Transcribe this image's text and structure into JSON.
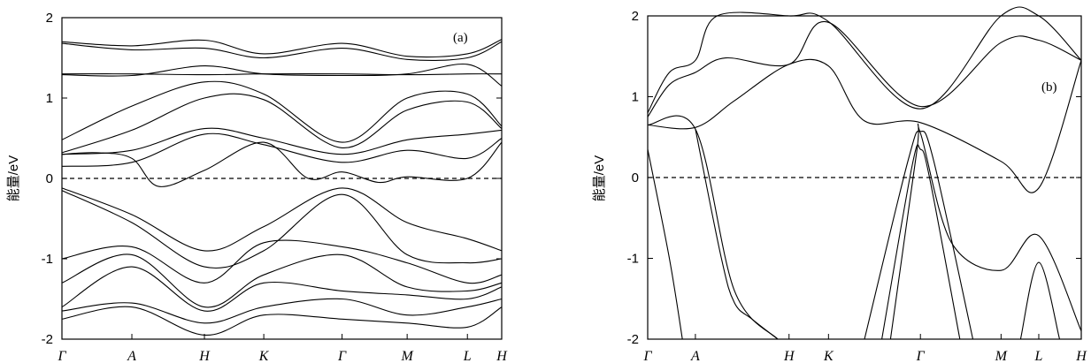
{
  "chart_data": [
    {
      "panel_label": "(a)",
      "type": "line",
      "ylabel": "能量/eV",
      "ylim": [
        -2,
        2
      ],
      "yticks": [
        "2",
        "1",
        "0",
        "-1",
        "-2"
      ],
      "kpath": [
        "Γ",
        "A",
        "H",
        "K",
        "Γ",
        "M",
        "L",
        "H"
      ],
      "kpath_x": [
        0,
        0.159,
        0.324,
        0.459,
        0.637,
        0.785,
        0.922,
        1.0
      ],
      "fermi_level": 0,
      "bands": [
        {
          "x": [
            0,
            0.159,
            0.324,
            0.459,
            0.637,
            0.785,
            0.922,
            1.0
          ],
          "y": [
            1.7,
            1.65,
            1.72,
            1.55,
            1.68,
            1.52,
            1.55,
            1.73
          ]
        },
        {
          "x": [
            0,
            0.159,
            0.324,
            0.459,
            0.637,
            0.785,
            0.922,
            1.0
          ],
          "y": [
            1.68,
            1.6,
            1.62,
            1.5,
            1.62,
            1.48,
            1.5,
            1.7
          ]
        },
        {
          "x": [
            0,
            0.159,
            0.324,
            0.459,
            0.637,
            0.785,
            0.922,
            1.0
          ],
          "y": [
            1.3,
            1.3,
            1.29,
            1.3,
            1.3,
            1.29,
            1.3,
            1.3
          ]
        },
        {
          "x": [
            0,
            0.159,
            0.324,
            0.459,
            0.637,
            0.785,
            0.922,
            1.0
          ],
          "y": [
            1.29,
            1.28,
            1.4,
            1.3,
            1.28,
            1.3,
            1.42,
            1.15
          ]
        },
        {
          "x": [
            0,
            0.159,
            0.324,
            0.459,
            0.637,
            0.785,
            0.922,
            1.0
          ],
          "y": [
            0.48,
            0.9,
            1.2,
            1.05,
            0.45,
            1.0,
            1.05,
            0.65
          ]
        },
        {
          "x": [
            0,
            0.159,
            0.324,
            0.459,
            0.637,
            0.785,
            0.922,
            1.0
          ],
          "y": [
            0.32,
            0.6,
            1.0,
            0.98,
            0.38,
            0.85,
            0.95,
            0.62
          ]
        },
        {
          "x": [
            0,
            0.159,
            0.324,
            0.459,
            0.637,
            0.785,
            0.922,
            1.0
          ],
          "y": [
            0.3,
            0.35,
            0.62,
            0.5,
            0.3,
            0.48,
            0.55,
            0.6
          ]
        },
        {
          "x": [
            0,
            0.159,
            0.324,
            0.459,
            0.637,
            0.785,
            0.922,
            1.0
          ],
          "y": [
            0.15,
            0.2,
            0.55,
            0.42,
            0.2,
            0.35,
            0.25,
            0.5
          ]
        },
        {
          "x": [
            0,
            0.08,
            0.159,
            0.22,
            0.324,
            0.459,
            0.56,
            0.637,
            0.72,
            0.785,
            0.922,
            1.0
          ],
          "y": [
            0.3,
            0.32,
            0.25,
            -0.1,
            0.1,
            0.45,
            0.0,
            0.08,
            -0.05,
            0.02,
            0.0,
            0.45
          ]
        },
        {
          "x": [
            0,
            0.159,
            0.324,
            0.459,
            0.637,
            0.785,
            0.922,
            1.0
          ],
          "y": [
            -0.12,
            -0.45,
            -0.9,
            -0.6,
            -0.12,
            -0.55,
            -0.75,
            -0.9
          ]
        },
        {
          "x": [
            0,
            0.159,
            0.324,
            0.459,
            0.637,
            0.785,
            0.922,
            1.0
          ],
          "y": [
            -0.15,
            -0.55,
            -1.1,
            -0.9,
            -0.2,
            -0.95,
            -1.05,
            -1.0
          ]
        },
        {
          "x": [
            0,
            0.159,
            0.324,
            0.459,
            0.637,
            0.785,
            0.922,
            1.0
          ],
          "y": [
            -1.0,
            -0.85,
            -1.3,
            -0.8,
            -0.85,
            -1.05,
            -1.3,
            -1.2
          ]
        },
        {
          "x": [
            0,
            0.159,
            0.324,
            0.459,
            0.637,
            0.785,
            0.922,
            1.0
          ],
          "y": [
            -1.3,
            -0.95,
            -1.6,
            -1.2,
            -0.95,
            -1.35,
            -1.4,
            -1.3
          ]
        },
        {
          "x": [
            0,
            0.159,
            0.324,
            0.459,
            0.637,
            0.785,
            0.922,
            1.0
          ],
          "y": [
            -1.6,
            -1.1,
            -1.65,
            -1.3,
            -1.4,
            -1.45,
            -1.5,
            -1.35
          ]
        },
        {
          "x": [
            0,
            0.159,
            0.324,
            0.459,
            0.637,
            0.785,
            0.922,
            1.0
          ],
          "y": [
            -1.65,
            -1.55,
            -1.8,
            -1.6,
            -1.5,
            -1.7,
            -1.6,
            -1.5
          ]
        },
        {
          "x": [
            0,
            0.159,
            0.324,
            0.459,
            0.637,
            0.785,
            0.922,
            1.0
          ],
          "y": [
            -1.75,
            -1.6,
            -1.95,
            -1.7,
            -1.75,
            -1.8,
            -1.85,
            -1.6
          ]
        }
      ]
    },
    {
      "panel_label": "(b)",
      "type": "line",
      "ylabel": "能量/eV",
      "ylim": [
        -2,
        2
      ],
      "yticks": [
        "2",
        "1",
        "0",
        "-1",
        "-2"
      ],
      "kpath": [
        "Γ",
        "A",
        "H",
        "K",
        "Γ",
        "M",
        "L",
        "H"
      ],
      "kpath_x": [
        0,
        0.11,
        0.326,
        0.417,
        0.629,
        0.815,
        0.902,
        1.0
      ],
      "fermi_level": 0,
      "bands": [
        {
          "x": [
            0,
            0.05,
            0.11,
            0.16,
            0.326,
            0.417,
            0.629,
            0.815,
            0.902,
            1.0
          ],
          "y": [
            0.8,
            1.3,
            1.45,
            2.0,
            2.0,
            1.93,
            0.85,
            2.0,
            2.0,
            1.45
          ]
        },
        {
          "x": [
            0,
            0.05,
            0.11,
            0.18,
            0.326,
            0.417,
            0.629,
            0.815,
            0.902,
            1.0
          ],
          "y": [
            0.75,
            1.15,
            1.3,
            1.48,
            1.4,
            1.92,
            0.88,
            1.67,
            1.7,
            1.45
          ]
        },
        {
          "x": [
            0,
            0.11,
            0.2,
            0.326,
            0.417,
            0.5,
            0.629,
            0.815,
            0.902,
            1.0
          ],
          "y": [
            0.65,
            0.62,
            0.95,
            1.4,
            1.38,
            0.7,
            0.68,
            0.2,
            -0.13,
            1.45
          ]
        },
        {
          "x": [
            0,
            0.11,
            0.2,
            0.3
          ],
          "y": [
            0.65,
            0.6,
            -1.4,
            -2.0
          ]
        },
        {
          "x": [
            0,
            0.05,
            0.08
          ],
          "y": [
            0.35,
            -1.0,
            -2.0
          ]
        },
        {
          "x": [
            0.5,
            0.6,
            0.629,
            0.66,
            0.75
          ],
          "y": [
            -2.0,
            0.2,
            0.57,
            0.2,
            -2.0
          ]
        },
        {
          "x": [
            0.54,
            0.61,
            0.629,
            0.65,
            0.72
          ],
          "y": [
            -2.0,
            0.15,
            0.35,
            0.0,
            -2.0
          ]
        },
        {
          "x": [
            0.56,
            0.62,
            0.629,
            0.7,
            0.815,
            0.902,
            1.0
          ],
          "y": [
            -2.0,
            0.3,
            0.55,
            -0.8,
            -1.15,
            -0.72,
            -1.9
          ]
        },
        {
          "x": [
            0.11,
            0.17,
            0.2,
            0.24,
            0.3
          ],
          "y": [
            0.6,
            -1.0,
            -1.55,
            -1.75,
            -2.0
          ]
        },
        {
          "x": [
            0.86,
            0.902,
            0.95
          ],
          "y": [
            -2.0,
            -1.05,
            -2.0
          ]
        }
      ]
    }
  ]
}
